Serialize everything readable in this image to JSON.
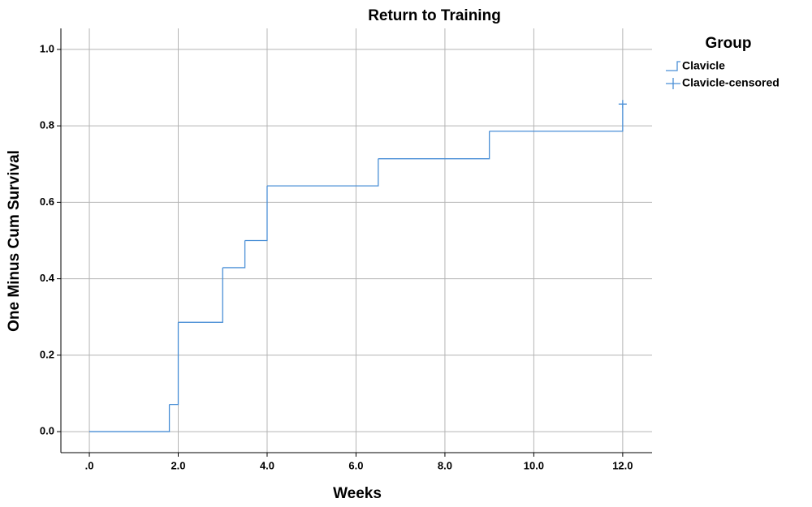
{
  "chart_data": {
    "type": "step",
    "title": "Return to Training",
    "x_label": "Weeks",
    "y_label": "One Minus Cum Survival",
    "legend_title": "Group",
    "legend": "right",
    "grid": true,
    "xlim": [
      -0.64,
      12.66
    ],
    "ylim": [
      -0.055,
      1.055
    ],
    "xticks": [
      {
        "value": 0,
        "label": ".0"
      },
      {
        "value": 2,
        "label": "2.0"
      },
      {
        "value": 4,
        "label": "4.0"
      },
      {
        "value": 6,
        "label": "6.0"
      },
      {
        "value": 8,
        "label": "8.0"
      },
      {
        "value": 10,
        "label": "10.0"
      },
      {
        "value": 12,
        "label": "12.0"
      }
    ],
    "yticks": [
      {
        "value": 0,
        "label": "0.0"
      },
      {
        "value": 0.2,
        "label": "0.2"
      },
      {
        "value": 0.4,
        "label": "0.4"
      },
      {
        "value": 0.6,
        "label": "0.6"
      },
      {
        "value": 0.8,
        "label": "0.8"
      },
      {
        "value": 1,
        "label": "1.0"
      }
    ],
    "series": [
      {
        "name": "Clavicle",
        "color": "#4a8fd6",
        "x": [
          0,
          1.8,
          2.0,
          3.0,
          3.5,
          4.0,
          6.5,
          9.0,
          12.0
        ],
        "values": [
          0,
          0.071,
          0.286,
          0.429,
          0.5,
          0.643,
          0.714,
          0.786,
          0.857
        ]
      },
      {
        "name": "Clavicle-censored",
        "color": "#4a8fd6",
        "x": [
          12.0
        ],
        "values": [
          0.857
        ]
      }
    ]
  }
}
